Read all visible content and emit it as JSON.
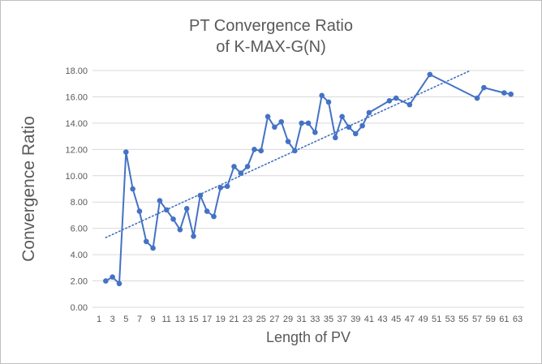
{
  "chart_data": {
    "type": "line",
    "title": "PT Convergence Ratio",
    "subtitle": "of K-MAX-G(N)",
    "xlabel": "Length of PV",
    "ylabel": "Convergence Ratio",
    "xlim": [
      1,
      63
    ],
    "ylim": [
      0,
      18
    ],
    "x_ticks": [
      "1",
      "3",
      "5",
      "7",
      "9",
      "11",
      "13",
      "15",
      "17",
      "19",
      "21",
      "23",
      "25",
      "27",
      "29",
      "31",
      "33",
      "35",
      "37",
      "39",
      "41",
      "43",
      "45",
      "47",
      "49",
      "51",
      "53",
      "55",
      "57",
      "59",
      "61",
      "63"
    ],
    "y_ticks": [
      "0.00",
      "2.00",
      "4.00",
      "6.00",
      "8.00",
      "10.00",
      "12.00",
      "14.00",
      "16.00",
      "18.00"
    ],
    "grid": "horizontal",
    "legend": "none",
    "series": [
      {
        "color": "#4472c4",
        "marker": "circle",
        "points": [
          {
            "x": 2,
            "y": 2.0
          },
          {
            "x": 3,
            "y": 2.3
          },
          {
            "x": 4,
            "y": 1.8
          },
          {
            "x": 5,
            "y": 11.8
          },
          {
            "x": 6,
            "y": 9.0
          },
          {
            "x": 7,
            "y": 7.3
          },
          {
            "x": 8,
            "y": 5.0
          },
          {
            "x": 9,
            "y": 4.5
          },
          {
            "x": 10,
            "y": 8.1
          },
          {
            "x": 11,
            "y": 7.4
          },
          {
            "x": 12,
            "y": 6.7
          },
          {
            "x": 13,
            "y": 5.9
          },
          {
            "x": 14,
            "y": 7.5
          },
          {
            "x": 15,
            "y": 5.4
          },
          {
            "x": 16,
            "y": 8.5
          },
          {
            "x": 17,
            "y": 7.3
          },
          {
            "x": 18,
            "y": 6.9
          },
          {
            "x": 19,
            "y": 9.1
          },
          {
            "x": 20,
            "y": 9.2
          },
          {
            "x": 21,
            "y": 10.7
          },
          {
            "x": 22,
            "y": 10.2
          },
          {
            "x": 23,
            "y": 10.7
          },
          {
            "x": 24,
            "y": 12.0
          },
          {
            "x": 25,
            "y": 11.9
          },
          {
            "x": 26,
            "y": 14.5
          },
          {
            "x": 27,
            "y": 13.7
          },
          {
            "x": 28,
            "y": 14.1
          },
          {
            "x": 29,
            "y": 12.6
          },
          {
            "x": 30,
            "y": 11.9
          },
          {
            "x": 31,
            "y": 14.0
          },
          {
            "x": 32,
            "y": 14.0
          },
          {
            "x": 33,
            "y": 13.3
          },
          {
            "x": 34,
            "y": 16.1
          },
          {
            "x": 35,
            "y": 15.6
          },
          {
            "x": 36,
            "y": 12.9
          },
          {
            "x": 37,
            "y": 14.5
          },
          {
            "x": 38,
            "y": 13.7
          },
          {
            "x": 39,
            "y": 13.2
          },
          {
            "x": 40,
            "y": 13.8
          },
          {
            "x": 41,
            "y": 14.8
          },
          {
            "x": 44,
            "y": 15.7
          },
          {
            "x": 45,
            "y": 15.9
          },
          {
            "x": 47,
            "y": 15.4
          },
          {
            "x": 50,
            "y": 17.7
          },
          {
            "x": 57,
            "y": 15.9
          },
          {
            "x": 58,
            "y": 16.7
          },
          {
            "x": 61,
            "y": 16.3
          },
          {
            "x": 62,
            "y": 16.2
          }
        ]
      }
    ],
    "trendline": {
      "style": "dotted",
      "color": "#4472c4",
      "x": [
        2,
        56
      ],
      "y": [
        5.3,
        18.0
      ]
    }
  }
}
